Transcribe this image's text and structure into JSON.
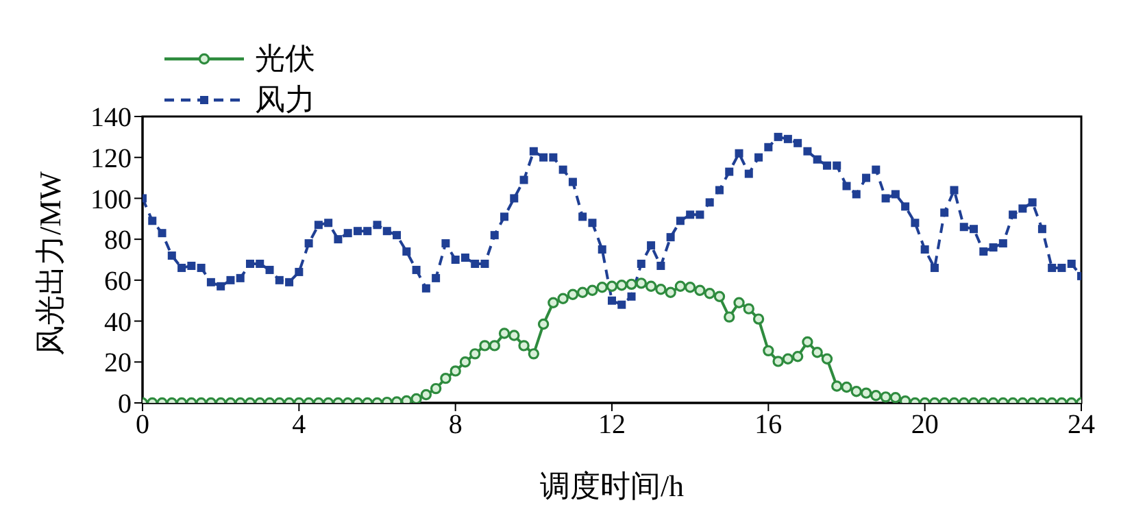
{
  "chart_data": {
    "type": "line",
    "xlabel": "调度时间/h",
    "ylabel": "风光出力/MW",
    "x": [
      0,
      0.25,
      0.5,
      0.75,
      1,
      1.25,
      1.5,
      1.75,
      2,
      2.25,
      2.5,
      2.75,
      3,
      3.25,
      3.5,
      3.75,
      4,
      4.25,
      4.5,
      4.75,
      5,
      5.25,
      5.5,
      5.75,
      6,
      6.25,
      6.5,
      6.75,
      7,
      7.25,
      7.5,
      7.75,
      8,
      8.25,
      8.5,
      8.75,
      9,
      9.25,
      9.5,
      9.75,
      10,
      10.25,
      10.5,
      10.75,
      11,
      11.25,
      11.5,
      11.75,
      12,
      12.25,
      12.5,
      12.75,
      13,
      13.25,
      13.5,
      13.75,
      14,
      14.25,
      14.5,
      14.75,
      15,
      15.25,
      15.5,
      15.75,
      16,
      16.25,
      16.5,
      16.75,
      17,
      17.25,
      17.5,
      17.75,
      18,
      18.25,
      18.5,
      18.75,
      19,
      19.25,
      19.5,
      19.75,
      20,
      20.25,
      20.5,
      20.75,
      21,
      21.25,
      21.5,
      21.75,
      22,
      22.25,
      22.5,
      22.75,
      23,
      23.25,
      23.5,
      23.75,
      24
    ],
    "series": [
      {
        "name": "光伏",
        "color": "#2e8b3e",
        "marker": "circle",
        "line_style": "solid",
        "values": [
          0,
          0,
          0,
          0,
          0,
          0,
          0,
          0,
          0,
          0,
          0,
          0,
          0,
          0,
          0,
          0,
          0,
          0,
          0,
          0,
          0,
          0,
          0,
          0,
          0,
          0.3,
          0.5,
          1,
          2,
          4,
          7,
          12,
          15.6,
          20,
          24,
          28,
          28,
          34,
          33,
          28,
          24,
          38.5,
          49,
          51,
          53,
          54,
          55,
          56.5,
          57,
          57.5,
          58,
          58.5,
          57,
          55.5,
          54,
          57,
          56.5,
          55,
          53.5,
          52,
          42,
          49,
          46,
          41,
          25.5,
          20.3,
          21.5,
          22.7,
          29.8,
          24.7,
          21.5,
          8.2,
          7.7,
          5.6,
          4.8,
          3.6,
          2.9,
          2.6,
          0.9,
          0,
          0,
          0,
          0,
          0,
          0,
          0,
          0,
          0,
          0,
          0,
          0,
          0,
          0,
          0,
          0,
          0,
          0
        ]
      },
      {
        "name": "风力",
        "color": "#1f3f94",
        "marker": "square",
        "line_style": "dashed",
        "values": [
          100,
          89,
          83,
          72,
          66,
          67,
          66,
          59,
          57,
          60,
          61,
          68,
          68,
          65,
          60,
          59,
          64,
          78,
          87,
          88,
          80,
          83,
          84,
          84,
          87,
          84,
          82,
          74,
          65,
          56,
          61,
          78,
          70,
          71,
          68,
          68,
          82,
          91,
          100,
          109,
          123,
          120,
          120,
          114,
          108,
          91,
          88,
          75,
          50,
          48,
          52,
          68,
          77,
          67,
          81,
          89,
          92,
          92,
          98,
          104,
          113,
          122,
          112,
          120,
          125,
          130,
          129,
          127,
          123,
          119,
          116,
          116,
          106,
          102,
          110,
          114,
          100,
          102,
          96,
          88,
          75,
          66,
          93,
          104,
          86,
          85,
          74,
          76,
          78,
          92,
          95,
          98,
          85,
          66,
          66,
          68,
          62
        ]
      }
    ],
    "xlim": [
      0,
      24
    ],
    "xticks": [
      0,
      4,
      8,
      12,
      16,
      20,
      24
    ],
    "ylim": [
      0,
      140
    ],
    "yticks": [
      0,
      20,
      40,
      60,
      80,
      100,
      120,
      140
    ],
    "grid": false,
    "legend": "top left"
  }
}
